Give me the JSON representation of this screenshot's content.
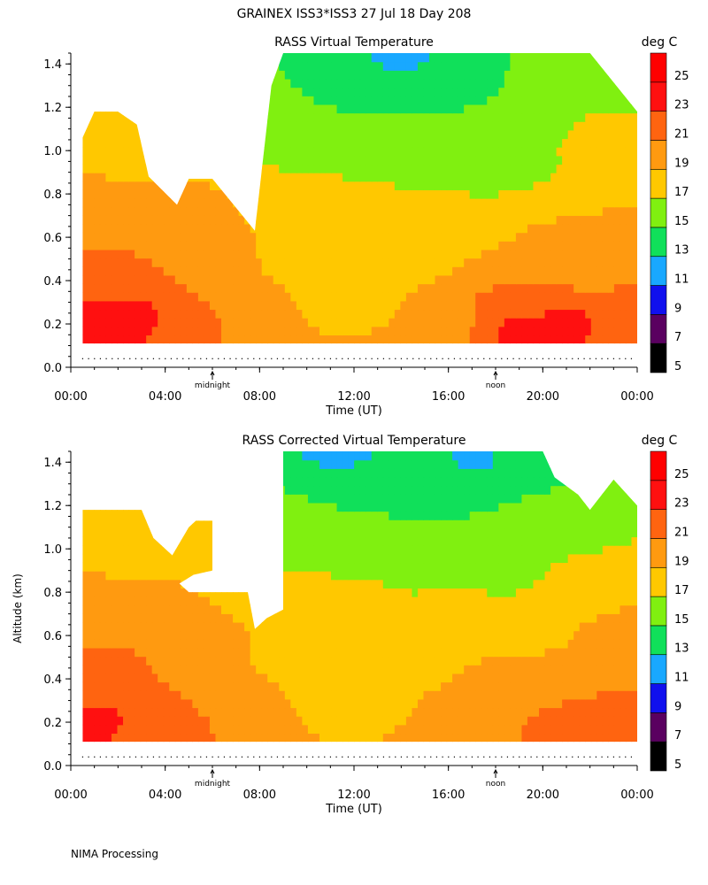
{
  "header": {
    "title": "GRAINEX ISS3*ISS3  27 Jul 18 Day 208"
  },
  "footer": {
    "text": "NIMA Processing"
  },
  "colorscale": {
    "unit_label": "deg C",
    "tick_labels": [
      "5",
      "7",
      "9",
      "11",
      "13",
      "15",
      "17",
      "19",
      "21",
      "23",
      "25"
    ],
    "bands": [
      {
        "lo": 5,
        "hi": 7,
        "color": "#000000"
      },
      {
        "lo": 7,
        "hi": 9,
        "color": "#5a0060"
      },
      {
        "lo": 9,
        "hi": 11,
        "color": "#1010ee"
      },
      {
        "lo": 11,
        "hi": 13,
        "color": "#19a8ff"
      },
      {
        "lo": 13,
        "hi": 15,
        "color": "#10e05a"
      },
      {
        "lo": 15,
        "hi": 17,
        "color": "#80f010"
      },
      {
        "lo": 17,
        "hi": 19,
        "color": "#ffc800"
      },
      {
        "lo": 19,
        "hi": 21,
        "color": "#ff9a10"
      },
      {
        "lo": 21,
        "hi": 23,
        "color": "#ff6410"
      },
      {
        "lo": 23,
        "hi": 25,
        "color": "#ff1010"
      },
      {
        "lo": 25,
        "hi": 27,
        "color": "#ff0000"
      }
    ]
  },
  "chart_data": [
    {
      "type": "heatmap",
      "title": "RASS Virtual Temperature",
      "xlabel": "Time (UT)",
      "ylabel": "",
      "xlim": [
        0,
        24
      ],
      "ylim": [
        0,
        1.45
      ],
      "x_tick_labels": [
        "00:00",
        "04:00",
        "08:00",
        "12:00",
        "16:00",
        "20:00",
        "00:00"
      ],
      "y_tick_labels": [
        "0.0",
        "0.2",
        "0.4",
        "0.6",
        "0.8",
        "1.0",
        "1.2",
        "1.4"
      ],
      "annotations": [
        {
          "label": "midnight",
          "x": 6
        },
        {
          "label": "noon",
          "x": 18
        }
      ],
      "data_bottom_km": 0.11,
      "top_boundary": [
        [
          0.5,
          1.06
        ],
        [
          1.0,
          1.18
        ],
        [
          2.0,
          1.18
        ],
        [
          2.8,
          1.12
        ],
        [
          3.3,
          0.88
        ],
        [
          4.5,
          0.75
        ],
        [
          5.0,
          0.87
        ],
        [
          6.0,
          0.87
        ],
        [
          7.8,
          0.63
        ],
        [
          8.5,
          1.3
        ],
        [
          9.0,
          1.45
        ],
        [
          21.5,
          1.45
        ],
        [
          22.0,
          1.48
        ],
        [
          24.0,
          1.18
        ]
      ],
      "data_points": [
        {
          "x": 1.0,
          "y": 0.18,
          "v": 24
        },
        {
          "x": 2.5,
          "y": 0.25,
          "v": 23.5
        },
        {
          "x": 4.0,
          "y": 0.2,
          "v": 23
        },
        {
          "x": 1.5,
          "y": 0.45,
          "v": 21.5
        },
        {
          "x": 3.5,
          "y": 0.45,
          "v": 21
        },
        {
          "x": 5.0,
          "y": 0.5,
          "v": 21
        },
        {
          "x": 6.0,
          "y": 0.25,
          "v": 21
        },
        {
          "x": 1.0,
          "y": 0.75,
          "v": 20
        },
        {
          "x": 3.0,
          "y": 0.7,
          "v": 19.5
        },
        {
          "x": 5.5,
          "y": 0.7,
          "v": 19.5
        },
        {
          "x": 7.5,
          "y": 0.4,
          "v": 19
        },
        {
          "x": 2.0,
          "y": 1.0,
          "v": 18
        },
        {
          "x": 9.0,
          "y": 0.2,
          "v": 19
        },
        {
          "x": 10.0,
          "y": 0.5,
          "v": 18
        },
        {
          "x": 12.0,
          "y": 0.3,
          "v": 18
        },
        {
          "x": 14.0,
          "y": 0.5,
          "v": 18
        },
        {
          "x": 16.0,
          "y": 0.2,
          "v": 19
        },
        {
          "x": 17.0,
          "y": 0.2,
          "v": 21
        },
        {
          "x": 18.0,
          "y": 0.2,
          "v": 22
        },
        {
          "x": 18.5,
          "y": 0.18,
          "v": 24
        },
        {
          "x": 21.0,
          "y": 0.2,
          "v": 23.5
        },
        {
          "x": 23.0,
          "y": 0.2,
          "v": 22.5
        },
        {
          "x": 20.0,
          "y": 0.4,
          "v": 21
        },
        {
          "x": 22.0,
          "y": 0.45,
          "v": 20.5
        },
        {
          "x": 24.0,
          "y": 0.4,
          "v": 21
        },
        {
          "x": 19.5,
          "y": 0.6,
          "v": 19
        },
        {
          "x": 23.0,
          "y": 0.75,
          "v": 19
        },
        {
          "x": 9.5,
          "y": 0.75,
          "v": 17.5
        },
        {
          "x": 12.0,
          "y": 0.75,
          "v": 17.5
        },
        {
          "x": 16.0,
          "y": 0.65,
          "v": 17.5
        },
        {
          "x": 9.5,
          "y": 1.1,
          "v": 15.5
        },
        {
          "x": 12.0,
          "y": 1.05,
          "v": 15.5
        },
        {
          "x": 15.0,
          "y": 1.0,
          "v": 15.5
        },
        {
          "x": 18.0,
          "y": 0.95,
          "v": 15.5
        },
        {
          "x": 20.0,
          "y": 1.1,
          "v": 16.5
        },
        {
          "x": 22.0,
          "y": 1.05,
          "v": 17.5
        },
        {
          "x": 12.0,
          "y": 1.3,
          "v": 14.5
        },
        {
          "x": 14.5,
          "y": 1.3,
          "v": 14
        },
        {
          "x": 17.0,
          "y": 1.35,
          "v": 14.5
        },
        {
          "x": 20.0,
          "y": 1.35,
          "v": 15.5
        },
        {
          "x": 14.0,
          "y": 1.44,
          "v": 12.5
        }
      ]
    },
    {
      "type": "heatmap",
      "title": "RASS Corrected Virtual Temperature",
      "xlabel": "Time (UT)",
      "ylabel": "Altitude (km)",
      "xlim": [
        0,
        24
      ],
      "ylim": [
        0,
        1.45
      ],
      "x_tick_labels": [
        "00:00",
        "04:00",
        "08:00",
        "12:00",
        "16:00",
        "20:00",
        "00:00"
      ],
      "y_tick_labels": [
        "0.0",
        "0.2",
        "0.4",
        "0.6",
        "0.8",
        "1.0",
        "1.2",
        "1.4"
      ],
      "annotations": [
        {
          "label": "midnight",
          "x": 6
        },
        {
          "label": "noon",
          "x": 18
        }
      ],
      "data_bottom_km": 0.11,
      "top_boundary": [
        [
          0.5,
          1.18
        ],
        [
          3.0,
          1.18
        ],
        [
          3.5,
          1.05
        ],
        [
          4.3,
          0.97
        ],
        [
          5.0,
          1.1
        ],
        [
          5.3,
          1.13
        ],
        [
          6.0,
          1.13
        ],
        [
          6.0,
          0.9
        ],
        [
          5.2,
          0.88
        ],
        [
          4.6,
          0.84
        ],
        [
          5.0,
          0.8
        ],
        [
          7.5,
          0.8
        ],
        [
          7.8,
          0.63
        ],
        [
          8.3,
          0.68
        ],
        [
          9.0,
          0.72
        ],
        [
          9.0,
          1.28
        ],
        [
          9.0,
          1.45
        ],
        [
          20.0,
          1.45
        ],
        [
          20.5,
          1.33
        ],
        [
          21.5,
          1.25
        ],
        [
          22.0,
          1.18
        ],
        [
          23.0,
          1.32
        ],
        [
          24.0,
          1.2
        ]
      ],
      "data_points": [
        {
          "x": 1.0,
          "y": 0.2,
          "v": 23.5
        },
        {
          "x": 2.5,
          "y": 0.2,
          "v": 23
        },
        {
          "x": 3.5,
          "y": 0.15,
          "v": 22
        },
        {
          "x": 1.5,
          "y": 0.45,
          "v": 21.5
        },
        {
          "x": 4.0,
          "y": 0.4,
          "v": 21
        },
        {
          "x": 6.0,
          "y": 0.25,
          "v": 21
        },
        {
          "x": 1.0,
          "y": 0.75,
          "v": 20
        },
        {
          "x": 3.0,
          "y": 0.7,
          "v": 20
        },
        {
          "x": 5.5,
          "y": 0.6,
          "v": 19.5
        },
        {
          "x": 7.5,
          "y": 0.4,
          "v": 19
        },
        {
          "x": 2.0,
          "y": 1.0,
          "v": 18
        },
        {
          "x": 5.5,
          "y": 1.05,
          "v": 18
        },
        {
          "x": 9.0,
          "y": 0.2,
          "v": 19
        },
        {
          "x": 10.0,
          "y": 0.5,
          "v": 18
        },
        {
          "x": 12.0,
          "y": 0.3,
          "v": 18
        },
        {
          "x": 14.0,
          "y": 0.5,
          "v": 18
        },
        {
          "x": 16.0,
          "y": 0.2,
          "v": 19
        },
        {
          "x": 17.0,
          "y": 0.2,
          "v": 20
        },
        {
          "x": 19.0,
          "y": 0.2,
          "v": 21
        },
        {
          "x": 21.0,
          "y": 0.15,
          "v": 22
        },
        {
          "x": 23.0,
          "y": 0.15,
          "v": 23
        },
        {
          "x": 20.0,
          "y": 0.4,
          "v": 20.5
        },
        {
          "x": 23.0,
          "y": 0.4,
          "v": 21
        },
        {
          "x": 24.0,
          "y": 0.6,
          "v": 20
        },
        {
          "x": 19.5,
          "y": 0.6,
          "v": 18.5
        },
        {
          "x": 22.0,
          "y": 0.8,
          "v": 18.5
        },
        {
          "x": 9.5,
          "y": 0.75,
          "v": 17.5
        },
        {
          "x": 12.0,
          "y": 0.75,
          "v": 17.5
        },
        {
          "x": 16.0,
          "y": 0.7,
          "v": 17.5
        },
        {
          "x": 9.5,
          "y": 1.1,
          "v": 15.5
        },
        {
          "x": 12.0,
          "y": 1.05,
          "v": 15.5
        },
        {
          "x": 15.0,
          "y": 0.95,
          "v": 15.5
        },
        {
          "x": 18.5,
          "y": 0.9,
          "v": 16.5
        },
        {
          "x": 20.0,
          "y": 1.1,
          "v": 16
        },
        {
          "x": 22.0,
          "y": 1.1,
          "v": 17
        },
        {
          "x": 12.0,
          "y": 1.3,
          "v": 14.5
        },
        {
          "x": 14.5,
          "y": 1.3,
          "v": 14
        },
        {
          "x": 17.0,
          "y": 1.3,
          "v": 14.5
        },
        {
          "x": 19.0,
          "y": 1.38,
          "v": 14.5
        },
        {
          "x": 11.5,
          "y": 1.44,
          "v": 12.5
        },
        {
          "x": 17.3,
          "y": 1.39,
          "v": 12.5
        }
      ]
    }
  ]
}
